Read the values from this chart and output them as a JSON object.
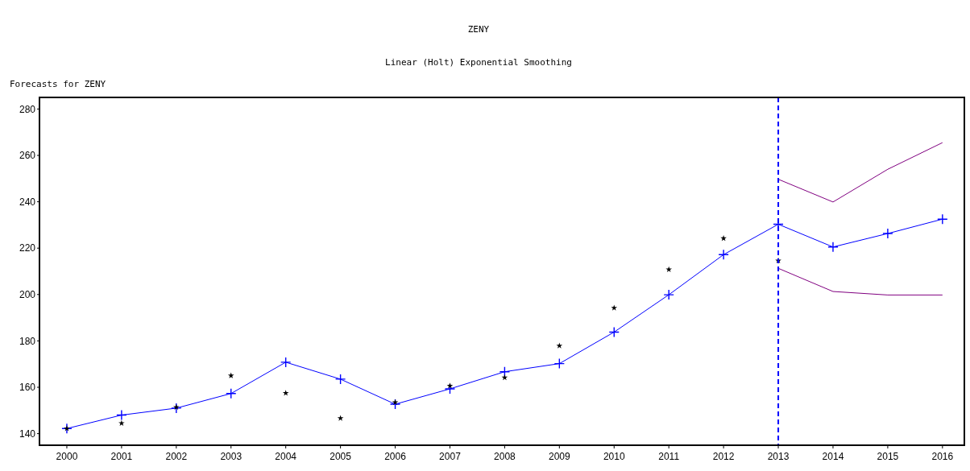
{
  "chart_data": {
    "type": "line",
    "title": "ZENY",
    "subtitle": "Linear (Holt) Exponential Smoothing",
    "ylabel": "Forecasts for ZENY",
    "xlim": [
      1999.5,
      2016.4
    ],
    "xticks": [
      2000,
      2001,
      2002,
      2003,
      2004,
      2005,
      2006,
      2007,
      2008,
      2009,
      2010,
      2011,
      2012,
      2013,
      2014,
      2015,
      2016
    ],
    "ylim": [
      135,
      285
    ],
    "yticks": [
      140,
      160,
      180,
      200,
      220,
      240,
      260,
      280
    ],
    "grid": false,
    "series": [
      {
        "marker": "cross",
        "color": "#0000ff",
        "x": [
          2000,
          2001,
          2002,
          2003,
          2004,
          2005,
          2006,
          2007,
          2008,
          2009,
          2010,
          2011,
          2012,
          2013,
          2014,
          2015,
          2016
        ],
        "values": [
          142.2,
          148.0,
          151.0,
          157.3,
          170.8,
          163.5,
          152.7,
          159.3,
          166.7,
          170.2,
          183.8,
          199.9,
          217.2,
          230.3,
          220.5,
          226.3,
          232.5
        ]
      },
      {
        "type": "scatter",
        "marker": "star",
        "color": "#000000",
        "x": [
          2000,
          2001,
          2002,
          2003,
          2004,
          2005,
          2006,
          2007,
          2008,
          2009,
          2010,
          2011,
          2012,
          2013
        ],
        "values": [
          142.2,
          144.5,
          151.4,
          165.0,
          157.5,
          146.6,
          153.5,
          160.6,
          164.2,
          177.9,
          194.2,
          210.8,
          224.2,
          214.6
        ]
      },
      {
        "type": "line",
        "marker": "none",
        "color": "#800080",
        "x": [
          2013,
          2014,
          2015,
          2016
        ],
        "values": [
          249.7,
          239.9,
          254.0,
          265.5
        ]
      },
      {
        "type": "line",
        "marker": "none",
        "color": "#800080",
        "x": [
          2013,
          2014,
          2015,
          2016
        ],
        "values": [
          211.3,
          201.3,
          199.8,
          199.8
        ]
      }
    ],
    "ref_lines": [
      {
        "axis": "x",
        "value": 2013,
        "color": "#0000ff",
        "line_style": "dashed"
      }
    ]
  }
}
